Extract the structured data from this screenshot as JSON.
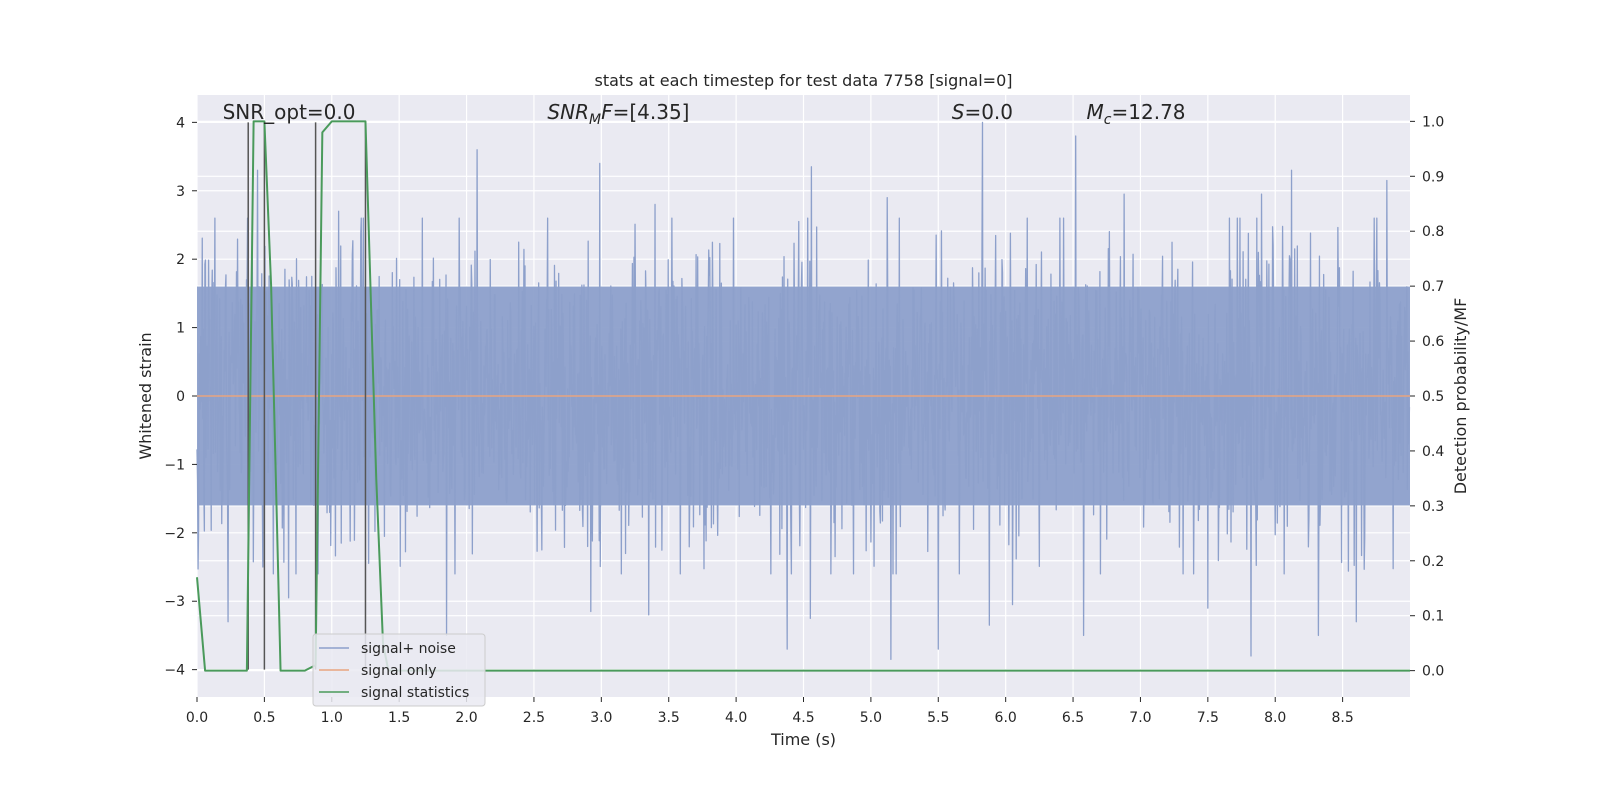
{
  "chart_data": {
    "type": "line",
    "title": "stats at each timestep for test data 7758 [signal=0]",
    "xlabel": "Time (s)",
    "ylabel": "Whitened strain",
    "y2label": "Detection probability/MF",
    "xlim": [
      0,
      9.0
    ],
    "ylim": [
      -4.4,
      4.4
    ],
    "y2lim": [
      -0.048,
      1.048
    ],
    "x_ticks": [
      0.0,
      0.5,
      1.0,
      1.5,
      2.0,
      2.5,
      3.0,
      3.5,
      4.0,
      4.5,
      5.0,
      5.5,
      6.0,
      6.5,
      7.0,
      7.5,
      8.0,
      8.5
    ],
    "x_tick_labels": [
      "0.0",
      "0.5",
      "1.0",
      "1.5",
      "2.0",
      "2.5",
      "3.0",
      "3.5",
      "4.0",
      "4.5",
      "5.0",
      "5.5",
      "6.0",
      "6.5",
      "7.0",
      "7.5",
      "8.0",
      "8.5"
    ],
    "y_ticks": [
      -4,
      -3,
      -2,
      -1,
      0,
      1,
      2,
      3,
      4
    ],
    "y_tick_labels": [
      "−4",
      "−3",
      "−2",
      "−1",
      "0",
      "1",
      "2",
      "3",
      "4"
    ],
    "y2_ticks": [
      0.0,
      0.1,
      0.2,
      0.3,
      0.4,
      0.5,
      0.6,
      0.7,
      0.8,
      0.9,
      1.0
    ],
    "y2_tick_labels": [
      "0.0",
      "0.1",
      "0.2",
      "0.3",
      "0.4",
      "0.5",
      "0.6",
      "0.7",
      "0.8",
      "0.9",
      "1.0"
    ],
    "grid": true,
    "legend_placement": "lower-left",
    "annotations": [
      {
        "x": 0.19,
        "y": 4.05,
        "text": "SNR_opt=0.0",
        "italic": false
      },
      {
        "x": 2.6,
        "y": 4.05,
        "text": "SNR",
        "sub": "M",
        "tail": "F=[4.35]",
        "italic": true
      },
      {
        "x": 5.6,
        "y": 4.05,
        "text": "S",
        "tail": "=0.0",
        "italic": true
      },
      {
        "x": 6.6,
        "y": 4.05,
        "text": "M",
        "sub": "c",
        "tail": "=12.78",
        "italic": true
      }
    ],
    "series": [
      {
        "name": "signal+ noise",
        "color": "#8da0cb",
        "kind": "noise",
        "sample_count": 2304,
        "base_envelope": [
          -1.6,
          1.6
        ],
        "peaks": [
          [
            0.23,
            2.9
          ],
          [
            0.45,
            3.3
          ],
          [
            0.49,
            3.9
          ],
          [
            1.05,
            2.7
          ],
          [
            1.22,
            2.6
          ],
          [
            2.08,
            3.6
          ],
          [
            2.6,
            2.6
          ],
          [
            2.99,
            3.4
          ],
          [
            3.4,
            2.8
          ],
          [
            4.56,
            3.35
          ],
          [
            5.12,
            2.9
          ],
          [
            5.83,
            4.0
          ],
          [
            6.52,
            3.8
          ],
          [
            6.88,
            2.95
          ],
          [
            7.9,
            2.95
          ],
          [
            8.12,
            3.3
          ],
          [
            8.83,
            3.15
          ],
          [
            0.23,
            -3.3
          ],
          [
            0.68,
            -2.95
          ],
          [
            1.85,
            -3.5
          ],
          [
            2.92,
            -3.15
          ],
          [
            3.35,
            -3.2
          ],
          [
            4.38,
            -3.7
          ],
          [
            4.55,
            -3.25
          ],
          [
            5.15,
            -3.85
          ],
          [
            5.5,
            -3.7
          ],
          [
            5.88,
            -3.35
          ],
          [
            6.58,
            -3.5
          ],
          [
            7.82,
            -3.8
          ],
          [
            8.32,
            -3.5
          ],
          [
            8.6,
            -3.3
          ],
          [
            0.49,
            -2.5
          ],
          [
            6.05,
            -3.05
          ],
          [
            7.5,
            -3.1
          ]
        ]
      },
      {
        "name": "signal only",
        "color": "#e8a47f",
        "kind": "flat",
        "value": 0
      },
      {
        "name": "signal statistics",
        "color": "#4a9a5b",
        "kind": "probability",
        "x": [
          0.0,
          0.06,
          0.12,
          0.3,
          0.37,
          0.42,
          0.5,
          0.55,
          0.62,
          0.8,
          0.88,
          0.93,
          1.0,
          1.25,
          1.33,
          1.38,
          1.42,
          9.0
        ],
        "y": [
          0.17,
          0.0,
          0.0,
          0.0,
          0.0,
          1.0,
          1.0,
          0.7,
          0.0,
          0.0,
          0.01,
          0.98,
          1.0,
          1.0,
          0.35,
          0.05,
          0.0,
          0.0
        ]
      }
    ],
    "vertical_markers": {
      "color": "#555555",
      "x": [
        0.38,
        0.5,
        0.88,
        1.25
      ],
      "y_from": -4,
      "y_to": 4
    }
  }
}
